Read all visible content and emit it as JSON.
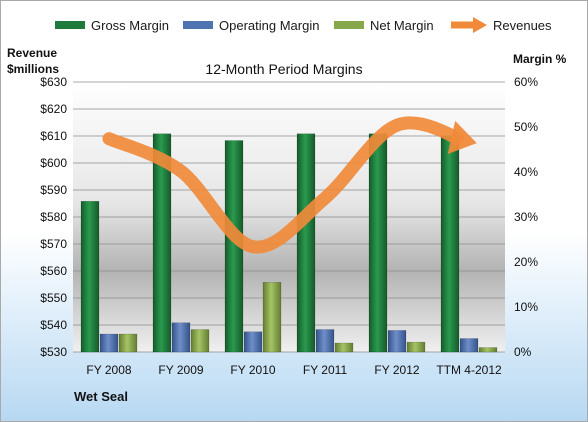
{
  "chart_data": {
    "type": "bar",
    "title": "12-Month Period Margins",
    "ylabel_left_line1": "Revenue",
    "ylabel_left_line2": "$millions",
    "ylabel_right": "Margin %",
    "footer": "Wet Seal",
    "categories": [
      "FY 2008",
      "FY 2009",
      "FY 2010",
      "FY 2011",
      "FY 2012",
      "TTM 4-2012"
    ],
    "left_axis": {
      "min": 530,
      "max": 630,
      "step": 10,
      "prefix": "$"
    },
    "right_axis": {
      "min": 0,
      "max": 60,
      "step": 10,
      "suffix": "%"
    },
    "series": [
      {
        "name": "Gross Margin",
        "axis": "right",
        "type": "bar",
        "color": "#1f7a3d",
        "values": [
          33.5,
          48.5,
          47,
          48.5,
          48.5,
          48
        ]
      },
      {
        "name": "Operating Margin",
        "axis": "right",
        "type": "bar",
        "color": "#4f72b0",
        "values": [
          4,
          6.5,
          4.5,
          5,
          4.8,
          3
        ]
      },
      {
        "name": "Net Margin",
        "axis": "right",
        "type": "bar",
        "color": "#86a84a",
        "values": [
          4,
          5,
          15.5,
          2,
          2.2,
          1
        ]
      },
      {
        "name": "Revenues",
        "axis": "left",
        "type": "line",
        "color": "#f08a3a",
        "values": [
          609,
          597,
          569,
          587,
          614,
          608
        ]
      }
    ],
    "grid": true,
    "legend_position": "top"
  }
}
